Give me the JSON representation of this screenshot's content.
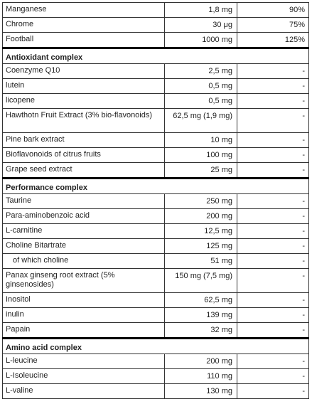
{
  "rows": [
    {
      "type": "row",
      "name": "Manganese",
      "amount": "1,8 mg",
      "pct": "90%"
    },
    {
      "type": "row",
      "name": "Chrome",
      "amount": "30 μg",
      "pct": "75%"
    },
    {
      "type": "row",
      "name": "Football",
      "amount": "1000 mg",
      "pct": "125%"
    },
    {
      "type": "section",
      "name": "Antioxidant complex"
    },
    {
      "type": "row",
      "name": "Coenzyme Q10",
      "amount": "2,5 mg",
      "pct": "-"
    },
    {
      "type": "row",
      "name": "lutein",
      "amount": "0,5 mg",
      "pct": "-"
    },
    {
      "type": "row",
      "name": "licopene",
      "amount": "0,5 mg",
      "pct": "-"
    },
    {
      "type": "row",
      "name": "Hawthotn Fruit Extract (3% bio-flavonoids)",
      "amount": "62,5 mg (1,9 mg)",
      "pct": "-",
      "two": true
    },
    {
      "type": "row",
      "name": "Pine bark extract",
      "amount": "10 mg",
      "pct": "-"
    },
    {
      "type": "row",
      "name": "Bioflavonoids of citrus fruits",
      "amount": "100 mg",
      "pct": "-"
    },
    {
      "type": "row",
      "name": "Grape seed extract",
      "amount": "25 mg",
      "pct": "-"
    },
    {
      "type": "section",
      "name": "Performance complex"
    },
    {
      "type": "row",
      "name": "Taurine",
      "amount": "250 mg",
      "pct": "-"
    },
    {
      "type": "row",
      "name": "Para-aminobenzoic acid",
      "amount": "200 mg",
      "pct": "-"
    },
    {
      "type": "row",
      "name": "L-carnitine",
      "amount": "12,5 mg",
      "pct": "-"
    },
    {
      "type": "row",
      "name": "Choline Bitartrate",
      "amount": "125 mg",
      "pct": "-"
    },
    {
      "type": "row",
      "name": "of which choline",
      "amount": "51 mg",
      "pct": "-",
      "indent": true
    },
    {
      "type": "row",
      "name": "Panax ginseng root extract (5% ginsenosides)",
      "amount": "150 mg (7,5 mg)",
      "pct": "-",
      "two": true
    },
    {
      "type": "row",
      "name": "Inositol",
      "amount": "62,5 mg",
      "pct": "-"
    },
    {
      "type": "row",
      "name": "inulin",
      "amount": "139 mg",
      "pct": "-"
    },
    {
      "type": "row",
      "name": "Papain",
      "amount": "32 mg",
      "pct": "-"
    },
    {
      "type": "section",
      "name": "Amino acid complex"
    },
    {
      "type": "row",
      "name": "L-leucine",
      "amount": "200 mg",
      "pct": "-"
    },
    {
      "type": "row",
      "name": "L-Isoleucine",
      "amount": "110 mg",
      "pct": "-"
    },
    {
      "type": "row",
      "name": "L-valine",
      "amount": "130 mg",
      "pct": "-"
    }
  ]
}
